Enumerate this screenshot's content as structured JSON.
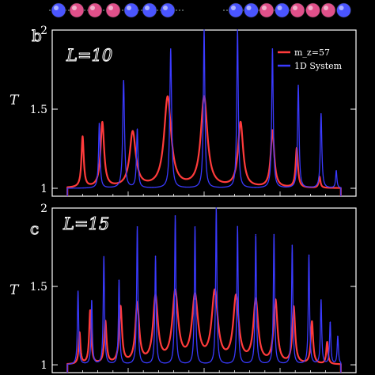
{
  "chain": {
    "left_colors": [
      "blue",
      "pink",
      "pink",
      "pink",
      "blue",
      "blue",
      "blue"
    ],
    "right_colors": [
      "blue",
      "blue",
      "pink",
      "blue",
      "pink",
      "pink",
      "pink",
      "blue"
    ]
  },
  "chart_data": [
    {
      "type": "line",
      "panel_label": "b",
      "annotation": "L=10",
      "ylabel": "T",
      "ylim": [
        0.95,
        2.0
      ],
      "xlim": [
        0,
        100
      ],
      "yticks": [
        "1",
        "1.5",
        "2"
      ],
      "legend_placement": "top-right",
      "series": [
        {
          "name": "m_z=57",
          "color": "#ff3b3b",
          "baseline": 1.0,
          "edges": [
            5,
            95
          ],
          "peaks": [
            {
              "x": 10,
              "y": 1.32,
              "w": 0.45
            },
            {
              "x": 16.5,
              "y": 1.41,
              "w": 0.7
            },
            {
              "x": 26.5,
              "y": 1.35,
              "w": 1.2
            },
            {
              "x": 38,
              "y": 1.57,
              "w": 1.4
            },
            {
              "x": 50,
              "y": 1.57,
              "w": 1.3
            },
            {
              "x": 62,
              "y": 1.41,
              "w": 1.0
            },
            {
              "x": 72.5,
              "y": 1.36,
              "w": 0.7
            },
            {
              "x": 80.5,
              "y": 1.25,
              "w": 0.45
            },
            {
              "x": 88,
              "y": 1.07,
              "w": 0.35
            }
          ]
        },
        {
          "name": "1D System",
          "color": "#3a3aff",
          "baseline": 1.0,
          "edges": [
            5,
            95
          ],
          "peaks": [
            {
              "x": 15.5,
              "y": 1.41,
              "w": 0.3
            },
            {
              "x": 23.5,
              "y": 1.68,
              "w": 0.35
            },
            {
              "x": 28,
              "y": 1.37,
              "w": 0.3
            },
            {
              "x": 39,
              "y": 1.88,
              "w": 0.35
            },
            {
              "x": 50,
              "y": 2.0,
              "w": 0.3
            },
            {
              "x": 61,
              "y": 2.0,
              "w": 0.3
            },
            {
              "x": 72.5,
              "y": 1.88,
              "w": 0.3
            },
            {
              "x": 81,
              "y": 1.65,
              "w": 0.3
            },
            {
              "x": 88.5,
              "y": 1.47,
              "w": 0.3
            },
            {
              "x": 93.5,
              "y": 1.11,
              "w": 0.25
            }
          ]
        }
      ]
    },
    {
      "type": "line",
      "panel_label": "c",
      "annotation": "L=15",
      "ylabel": "T",
      "ylim": [
        0.95,
        2.0
      ],
      "xlim": [
        0,
        100
      ],
      "yticks": [
        "1",
        "1.5",
        "2"
      ],
      "series": [
        {
          "name": "m_z=57",
          "color": "#ff3b3b",
          "baseline": 1.0,
          "edges": [
            5,
            95
          ],
          "peaks": [
            {
              "x": 9,
              "y": 1.2,
              "w": 0.35
            },
            {
              "x": 12.5,
              "y": 1.34,
              "w": 0.4
            },
            {
              "x": 17.5,
              "y": 1.27,
              "w": 0.45
            },
            {
              "x": 22.5,
              "y": 1.36,
              "w": 0.55
            },
            {
              "x": 28,
              "y": 1.38,
              "w": 0.75
            },
            {
              "x": 34,
              "y": 1.42,
              "w": 0.95
            },
            {
              "x": 40.5,
              "y": 1.45,
              "w": 1.15
            },
            {
              "x": 47,
              "y": 1.42,
              "w": 1.2
            },
            {
              "x": 53.5,
              "y": 1.45,
              "w": 1.2
            },
            {
              "x": 60.5,
              "y": 1.42,
              "w": 1.1
            },
            {
              "x": 67,
              "y": 1.4,
              "w": 0.95
            },
            {
              "x": 73.5,
              "y": 1.4,
              "w": 0.75
            },
            {
              "x": 79.5,
              "y": 1.36,
              "w": 0.55
            },
            {
              "x": 85.5,
              "y": 1.27,
              "w": 0.45
            },
            {
              "x": 90.5,
              "y": 1.14,
              "w": 0.35
            }
          ]
        },
        {
          "name": "1D System",
          "color": "#3a3aff",
          "baseline": 1.0,
          "edges": [
            5,
            95
          ],
          "peaks": [
            {
              "x": 8.5,
              "y": 1.47,
              "w": 0.25
            },
            {
              "x": 13,
              "y": 1.41,
              "w": 0.25
            },
            {
              "x": 17,
              "y": 1.69,
              "w": 0.25
            },
            {
              "x": 22,
              "y": 1.54,
              "w": 0.25
            },
            {
              "x": 28,
              "y": 1.88,
              "w": 0.25
            },
            {
              "x": 34,
              "y": 1.69,
              "w": 0.25
            },
            {
              "x": 40.5,
              "y": 1.95,
              "w": 0.25
            },
            {
              "x": 47,
              "y": 1.88,
              "w": 0.25
            },
            {
              "x": 54,
              "y": 2.0,
              "w": 0.25
            },
            {
              "x": 61,
              "y": 1.88,
              "w": 0.25
            },
            {
              "x": 67,
              "y": 1.83,
              "w": 0.25
            },
            {
              "x": 73,
              "y": 1.83,
              "w": 0.25
            },
            {
              "x": 79,
              "y": 1.76,
              "w": 0.25
            },
            {
              "x": 84.5,
              "y": 1.7,
              "w": 0.25
            },
            {
              "x": 88.5,
              "y": 1.41,
              "w": 0.25
            },
            {
              "x": 91.5,
              "y": 1.27,
              "w": 0.25
            },
            {
              "x": 94,
              "y": 1.18,
              "w": 0.25
            }
          ]
        }
      ]
    }
  ]
}
